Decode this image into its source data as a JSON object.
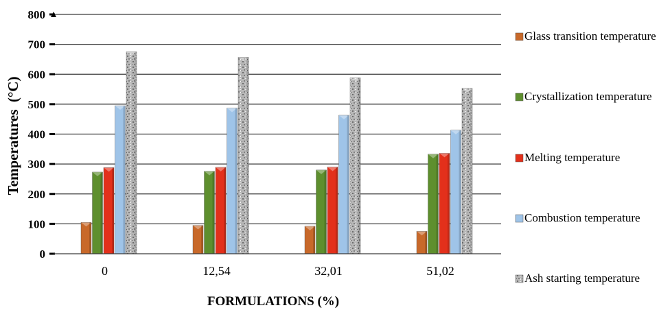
{
  "chart_data": {
    "type": "bar",
    "title": "",
    "xlabel": "FORMULATIONS (%)",
    "ylabel": "Temperatures  (°C)",
    "ylim": [
      0,
      800
    ],
    "yticks": [
      0,
      100,
      200,
      300,
      400,
      500,
      600,
      700,
      800
    ],
    "grid": true,
    "legend_position": "right",
    "categories": [
      "0",
      "12,54",
      "32,01",
      "51,02"
    ],
    "series": [
      {
        "name": "Glass transition temperature",
        "color": "#c8692a",
        "values": [
          105,
          95,
          92,
          75
        ]
      },
      {
        "name": "Crystallization temperature",
        "color": "#5e8f2e",
        "values": [
          273,
          276,
          280,
          333
        ]
      },
      {
        "name": "Melting temperature",
        "color": "#e3301b",
        "values": [
          288,
          289,
          290,
          336
        ]
      },
      {
        "name": "Combustion temperature",
        "color": "#9fc4e8",
        "values": [
          495,
          487,
          463,
          413
        ]
      },
      {
        "name": "Ash starting temperature",
        "color": "#a8a8a8",
        "values": [
          675,
          657,
          588,
          553
        ]
      }
    ]
  }
}
